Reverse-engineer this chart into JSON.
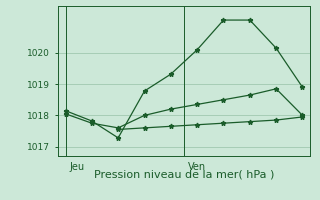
{
  "bg_color": "#cce8d8",
  "grid_color": "#a0c8b0",
  "line_color": "#1a5c2a",
  "marker_color": "#1a5c2a",
  "line1_x": [
    0,
    1,
    2,
    3,
    4,
    5,
    6,
    7,
    8,
    9
  ],
  "line1_y": [
    1018.15,
    1017.82,
    1017.28,
    1018.78,
    1019.32,
    1020.1,
    1021.05,
    1021.05,
    1020.15,
    1018.9
  ],
  "line2_x": [
    0,
    1,
    2,
    3,
    4,
    5,
    6,
    7,
    8,
    9
  ],
  "line2_y": [
    1018.05,
    1017.75,
    1017.6,
    1018.0,
    1018.2,
    1018.35,
    1018.5,
    1018.65,
    1018.85,
    1018.0
  ],
  "line3_x": [
    2,
    3,
    4,
    5,
    6,
    7,
    8,
    9
  ],
  "line3_y": [
    1017.55,
    1017.6,
    1017.65,
    1017.7,
    1017.75,
    1017.8,
    1017.85,
    1017.95
  ],
  "yticks": [
    1017,
    1018,
    1019,
    1020
  ],
  "ylim": [
    1016.7,
    1021.5
  ],
  "xlim": [
    -0.3,
    9.3
  ],
  "x_jeu": 0,
  "x_ven": 4.5,
  "x_tick_pos": [
    0.15,
    4.65
  ],
  "x_tick_labels": [
    "Jeu",
    "Ven"
  ],
  "vline_x": [
    0.0,
    4.5
  ],
  "xlabel": "Pression niveau de la mer( hPa )",
  "xlabel_color": "#1a5c2a",
  "xlabel_fontsize": 8,
  "ytick_fontsize": 6.5,
  "xtick_fontsize": 7,
  "figsize": [
    3.2,
    2.0
  ],
  "dpi": 100
}
